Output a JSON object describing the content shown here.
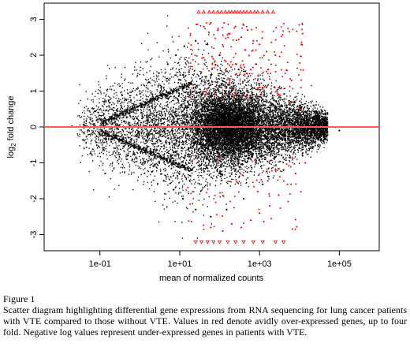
{
  "chart_data": {
    "type": "scatter",
    "xlabel": "mean of normalized counts",
    "ylabel_base": "log",
    "ylabel_sub": "2",
    "ylabel_rest": " fold change",
    "x_scale": "log10",
    "xlim": [
      0.004,
      1000000
    ],
    "ylim": [
      -3.45,
      3.45
    ],
    "x_ticks": [
      0.1,
      10,
      1000,
      100000
    ],
    "x_tick_labels": [
      "1e-01",
      "1e+01",
      "1e+03",
      "1e+05"
    ],
    "y_ticks": [
      -3,
      -2,
      -1,
      0,
      1,
      2,
      3
    ],
    "y_tick_labels": [
      "-3",
      "-2",
      "-1",
      "0",
      "1",
      "2",
      "3"
    ],
    "reference_line_y": 0,
    "colors": {
      "not_significant": "#000000",
      "significant": "#ff0000",
      "reference_line": "#ff5a5a"
    },
    "series": [
      {
        "points": [
          [
            0.02,
            0.02
          ],
          [
            0.04,
            0.05
          ],
          [
            0.07,
            0.08
          ],
          [
            0.12,
            0.15
          ],
          [
            0.2,
            0.3
          ],
          [
            0.35,
            0.55
          ],
          [
            0.6,
            0.75
          ],
          [
            1.0,
            1.0
          ],
          [
            1.7,
            1.25
          ],
          [
            3,
            1.5
          ],
          [
            5,
            1.75
          ],
          [
            8,
            2.0
          ],
          [
            13,
            2.25
          ],
          [
            25,
            2.4
          ],
          [
            50,
            2.3
          ],
          [
            100,
            2.0
          ],
          [
            300,
            1.6
          ],
          [
            1000,
            1.2
          ],
          [
            3000,
            0.9
          ],
          [
            10000,
            0.6
          ],
          [
            30000,
            0.3
          ],
          [
            0.05,
            -0.1
          ],
          [
            0.1,
            -0.2
          ],
          [
            0.2,
            -0.35
          ],
          [
            0.4,
            -0.55
          ],
          [
            0.7,
            -0.75
          ],
          [
            1.2,
            -1.0
          ],
          [
            2,
            -1.25
          ],
          [
            4,
            -1.5
          ],
          [
            7,
            -1.75
          ],
          [
            12,
            -2.0
          ],
          [
            25,
            -2.3
          ],
          [
            60,
            -2.5
          ],
          [
            150,
            -2.3
          ],
          [
            400,
            -2.0
          ],
          [
            1200,
            -1.6
          ],
          [
            4000,
            -1.2
          ],
          [
            12000,
            -0.8
          ],
          [
            40000,
            -0.4
          ],
          [
            100000,
            -0.1
          ]
        ]
      },
      {
        "points": [
          [
            30,
            3.2
          ],
          [
            40,
            3.2
          ],
          [
            55,
            3.2
          ],
          [
            70,
            3.2
          ],
          [
            90,
            3.2
          ],
          [
            110,
            3.2
          ],
          [
            140,
            3.2
          ],
          [
            170,
            3.2
          ],
          [
            200,
            3.2
          ],
          [
            240,
            3.2
          ],
          [
            280,
            3.2
          ],
          [
            330,
            3.2
          ],
          [
            400,
            3.2
          ],
          [
            480,
            3.2
          ],
          [
            600,
            3.2
          ],
          [
            750,
            3.2
          ],
          [
            900,
            3.2
          ],
          [
            1200,
            3.2
          ],
          [
            1600,
            3.2
          ],
          [
            2200,
            3.2
          ],
          [
            40,
            2.8
          ],
          [
            60,
            2.9
          ],
          [
            90,
            2.7
          ],
          [
            130,
            2.9
          ],
          [
            180,
            2.6
          ],
          [
            250,
            2.8
          ],
          [
            350,
            2.5
          ],
          [
            500,
            2.7
          ],
          [
            700,
            2.4
          ],
          [
            1000,
            2.3
          ],
          [
            1500,
            2.1
          ],
          [
            2500,
            2.0
          ],
          [
            600,
            1.6
          ],
          [
            900,
            1.3
          ],
          [
            1500,
            1.1
          ],
          [
            3000,
            0.9
          ],
          [
            6000,
            0.7
          ],
          [
            10000,
            0.5
          ],
          [
            12000,
            2.6
          ],
          [
            25,
            -3.2
          ],
          [
            35,
            -3.2
          ],
          [
            50,
            -3.2
          ],
          [
            70,
            -3.2
          ],
          [
            100,
            -3.2
          ],
          [
            160,
            -3.2
          ],
          [
            250,
            -3.2
          ],
          [
            400,
            -3.2
          ],
          [
            700,
            -3.2
          ],
          [
            1200,
            -3.2
          ],
          [
            2500,
            -3.2
          ],
          [
            4000,
            -3.2
          ],
          [
            60,
            -2.8
          ],
          [
            120,
            -2.9
          ],
          [
            200,
            -2.7
          ],
          [
            350,
            -2.8
          ],
          [
            600,
            -2.6
          ],
          [
            1000,
            -2.4
          ],
          [
            1800,
            -2.2
          ],
          [
            3000,
            -1.9
          ],
          [
            5000,
            -1.6
          ],
          [
            8000,
            -1.3
          ],
          [
            14000,
            -1.0
          ],
          [
            900,
            -1.8
          ],
          [
            1600,
            -1.5
          ],
          [
            2500,
            -1.2
          ]
        ]
      }
    ]
  },
  "caption": {
    "figure_label": "Figure 1",
    "text": "Scatter diagram highlighting differential gene expressions from RNA sequencing for lung cancer patients with VTE compared to those without VTE. Values in red denote avidly over-expressed genes, up to four fold. Negative log values represent under-expressed genes in patients with VTE."
  }
}
